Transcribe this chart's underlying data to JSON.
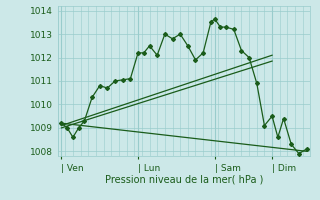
{
  "xlabel": "Pression niveau de la mer( hPa )",
  "bg_color": "#cce8e8",
  "grid_color": "#99cccc",
  "line_color": "#1a5c1a",
  "ylim": [
    1007.8,
    1014.2
  ],
  "yticks": [
    1008,
    1009,
    1010,
    1011,
    1012,
    1013,
    1014
  ],
  "day_labels": [
    "| Ven",
    "| Lun",
    "| Sam",
    "| Dim"
  ],
  "day_positions": [
    0,
    40,
    80,
    110
  ],
  "xlim": [
    -2,
    130
  ],
  "main_line_x": [
    0,
    3,
    6,
    9,
    12,
    16,
    20,
    24,
    28,
    32,
    36,
    40,
    43,
    46,
    50,
    54,
    58,
    62,
    66,
    70,
    74,
    78,
    80,
    83,
    86,
    90,
    94,
    98,
    102,
    106,
    110,
    113,
    116,
    120,
    124,
    128
  ],
  "main_line_y": [
    1009.2,
    1009.0,
    1008.6,
    1009.0,
    1009.3,
    1010.3,
    1010.8,
    1010.7,
    1011.0,
    1011.05,
    1011.1,
    1012.2,
    1012.2,
    1012.5,
    1012.1,
    1013.0,
    1012.8,
    1013.0,
    1012.5,
    1011.9,
    1012.2,
    1013.5,
    1013.65,
    1013.3,
    1013.3,
    1013.2,
    1012.3,
    1012.0,
    1010.9,
    1009.1,
    1009.5,
    1008.6,
    1009.4,
    1008.3,
    1007.9,
    1008.1
  ],
  "trend1_x": [
    0,
    110
  ],
  "trend1_y": [
    1009.1,
    1012.1
  ],
  "trend2_x": [
    0,
    110
  ],
  "trend2_y": [
    1009.0,
    1011.85
  ],
  "trend3_x": [
    0,
    128
  ],
  "trend3_y": [
    1009.2,
    1008.0
  ]
}
